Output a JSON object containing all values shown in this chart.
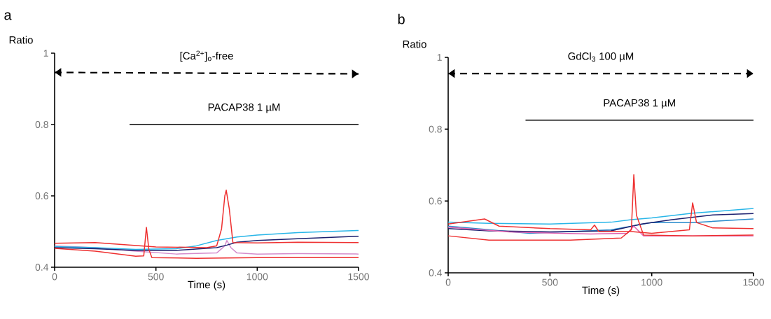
{
  "chart_data": [
    {
      "type": "line",
      "title": "a",
      "xlabel": "Time  (s)",
      "ylabel": "Ratio",
      "xlim": [
        0,
        1500
      ],
      "ylim": [
        0.4,
        1
      ],
      "xticks": [
        0,
        500,
        1000,
        1500
      ],
      "yticks": [
        0.4,
        0.6,
        0.8,
        1
      ],
      "marker": "none",
      "line_style": "solid",
      "annotations": [
        "[Ca$^{2+}$]$_{o}$-free",
        "PACAP38 1 µM"
      ],
      "series": [
        {
          "color": "#000000",
          "line_style": "dashed",
          "x": [
            0,
            1500
          ],
          "values": [
            0.946,
            0.942
          ]
        },
        {
          "color": "#000000",
          "x": [
            370,
            1500
          ],
          "values": [
            0.8,
            0.8
          ]
        },
        {
          "color": "#d48ccc",
          "x": [
            0,
            200,
            400,
            600,
            800,
            840,
            850,
            870,
            900,
            1000,
            1200,
            1500
          ],
          "values": [
            0.46,
            0.455,
            0.445,
            0.437,
            0.44,
            0.46,
            0.475,
            0.455,
            0.44,
            0.437,
            0.438,
            0.437
          ]
        },
        {
          "color": "#29b6e8",
          "x": [
            0,
            200,
            400,
            600,
            700,
            800,
            900,
            1000,
            1200,
            1500
          ],
          "values": [
            0.458,
            0.455,
            0.45,
            0.452,
            0.46,
            0.475,
            0.485,
            0.49,
            0.497,
            0.503
          ]
        },
        {
          "color": "#1b1f6e",
          "x": [
            0,
            200,
            400,
            600,
            800,
            850,
            900,
            1000,
            1200,
            1500
          ],
          "values": [
            0.455,
            0.452,
            0.447,
            0.447,
            0.455,
            0.462,
            0.47,
            0.475,
            0.48,
            0.487
          ]
        },
        {
          "color": "#ee3030",
          "x": [
            0,
            200,
            400,
            440,
            453,
            465,
            480,
            700,
            1000,
            1500
          ],
          "values": [
            0.453,
            0.445,
            0.431,
            0.432,
            0.512,
            0.45,
            0.427,
            0.425,
            0.427,
            0.427
          ]
        },
        {
          "color": "#ee3030",
          "x": [
            0,
            200,
            500,
            750,
            800,
            824,
            840,
            847,
            862,
            880,
            1000,
            1200,
            1500
          ],
          "values": [
            0.467,
            0.469,
            0.457,
            0.455,
            0.46,
            0.508,
            0.6,
            0.616,
            0.564,
            0.469,
            0.468,
            0.47,
            0.469
          ]
        }
      ]
    },
    {
      "type": "line",
      "title": "b",
      "xlabel": "Time  (s)",
      "ylabel": "Ratio",
      "xlim": [
        0,
        1500
      ],
      "ylim": [
        0.4,
        1
      ],
      "xticks": [
        0,
        500,
        1000,
        1500
      ],
      "yticks": [
        0.4,
        0.6,
        0.8,
        1
      ],
      "marker": "none",
      "line_style": "solid",
      "annotations": [
        "GdCl$_{3}$ 100 µM",
        "PACAP38 1 µM"
      ],
      "series": [
        {
          "color": "#000000",
          "line_style": "dashed",
          "x": [
            0,
            1500
          ],
          "values": [
            0.955,
            0.955
          ]
        },
        {
          "color": "#000000",
          "x": [
            380,
            1500
          ],
          "values": [
            0.825,
            0.825
          ]
        },
        {
          "color": "#29b6e8",
          "x": [
            0,
            200,
            500,
            800,
            900,
            1000,
            1200,
            1500
          ],
          "values": [
            0.541,
            0.538,
            0.536,
            0.541,
            0.548,
            0.553,
            0.566,
            0.579
          ]
        },
        {
          "color": "#2a8ccc",
          "x": [
            0,
            400,
            800,
            1000,
            1200,
            1500
          ],
          "values": [
            0.53,
            0.51,
            0.52,
            0.54,
            0.54,
            0.55
          ]
        },
        {
          "color": "#1b1f6e",
          "x": [
            0,
            200,
            500,
            800,
            950,
            1100,
            1300,
            1500
          ],
          "values": [
            0.523,
            0.517,
            0.514,
            0.517,
            0.536,
            0.548,
            0.561,
            0.565
          ]
        },
        {
          "color": "#e060b0",
          "x": [
            0,
            300,
            700,
            880,
            912,
            960,
            1200,
            1500
          ],
          "values": [
            0.527,
            0.514,
            0.508,
            0.51,
            0.53,
            0.503,
            0.503,
            0.503
          ]
        },
        {
          "color": "#ee3030",
          "x": [
            0,
            179,
            250,
            500,
            700,
            719,
            740,
            900,
            1000,
            1185,
            1201,
            1220,
            1300,
            1500
          ],
          "values": [
            0.536,
            0.55,
            0.53,
            0.523,
            0.52,
            0.533,
            0.515,
            0.515,
            0.51,
            0.52,
            0.595,
            0.54,
            0.525,
            0.523
          ]
        },
        {
          "color": "#ee3030",
          "x": [
            0,
            200,
            600,
            850,
            900,
            912,
            925,
            960,
            1200,
            1500
          ],
          "values": [
            0.503,
            0.491,
            0.491,
            0.497,
            0.52,
            0.673,
            0.56,
            0.505,
            0.503,
            0.505
          ]
        }
      ]
    }
  ]
}
